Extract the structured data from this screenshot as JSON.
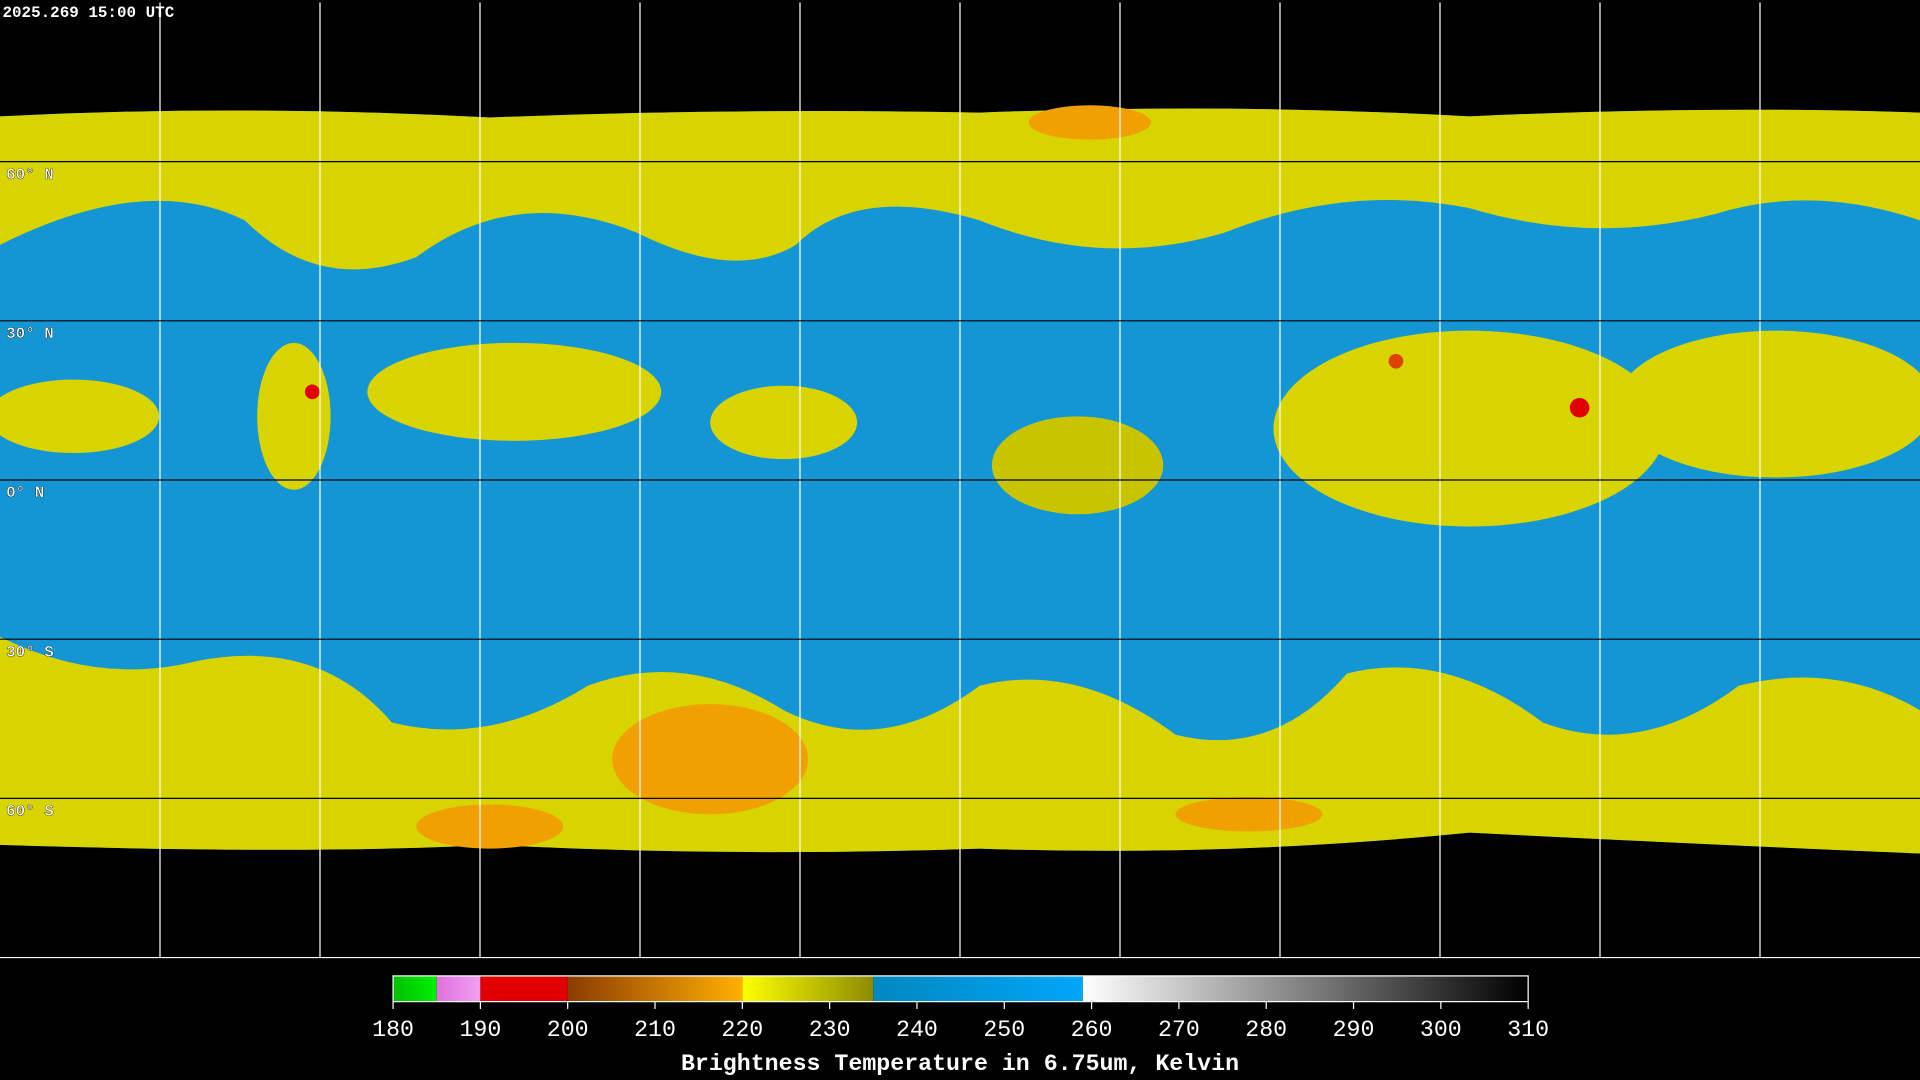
{
  "timestamp": "2025.269 15:00 UTC",
  "latitudes": [
    {
      "value": 60,
      "label": "60° N"
    },
    {
      "value": 30,
      "label": "30° N"
    },
    {
      "value": 0,
      "label": "0° N"
    },
    {
      "value": -30,
      "label": "30° S"
    },
    {
      "value": -60,
      "label": "60° S"
    }
  ],
  "colorbar": {
    "title": "Brightness Temperature in 6.75um, Kelvin",
    "range": [
      180,
      310
    ],
    "ticks": [
      180,
      190,
      200,
      210,
      220,
      230,
      240,
      250,
      260,
      270,
      280,
      290,
      300,
      310
    ],
    "segments": [
      {
        "from": 180,
        "to": 185,
        "colors": [
          "#00c000",
          "#00f000"
        ]
      },
      {
        "from": 185,
        "to": 190,
        "colors": [
          "#e070e0",
          "#f0a0f0"
        ]
      },
      {
        "from": 190,
        "to": 200,
        "colors": [
          "#e00000",
          "#e00000"
        ]
      },
      {
        "from": 200,
        "to": 220,
        "colors": [
          "#8a3c00",
          "#ffb000"
        ]
      },
      {
        "from": 220,
        "to": 235,
        "colors": [
          "#ffff00",
          "#8c8c00"
        ]
      },
      {
        "from": 235,
        "to": 259,
        "colors": [
          "#0088c0",
          "#00a6f8"
        ]
      },
      {
        "from": 259,
        "to": 310,
        "colors": [
          "#ffffff",
          "#000000"
        ]
      }
    ]
  }
}
